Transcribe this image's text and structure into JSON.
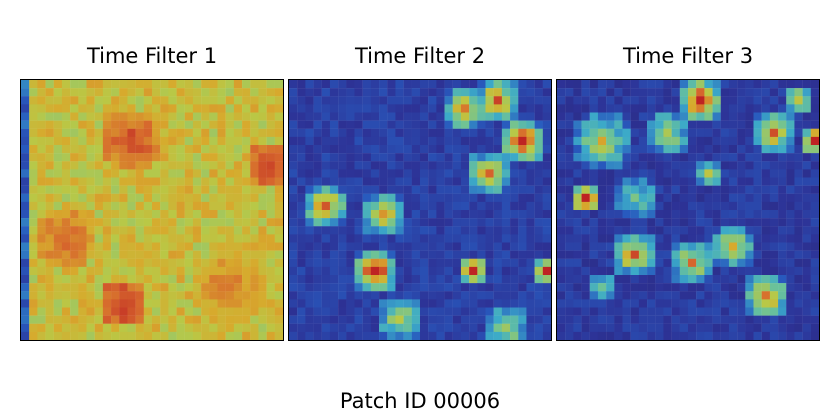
{
  "chart_data": [
    {
      "type": "heatmap",
      "title": "Time Filter 1",
      "grid_size": [
        32,
        32
      ],
      "value_range": [
        0,
        1
      ],
      "colormap": "jet",
      "overall_level": "high",
      "pattern_seed": 7,
      "hotspots": [
        {
          "col": 13,
          "row": 7,
          "radius": 4,
          "value": 0.95
        },
        {
          "col": 5,
          "row": 19,
          "radius": 4,
          "value": 0.92
        },
        {
          "col": 25,
          "row": 25,
          "radius": 5,
          "value": 0.9
        },
        {
          "col": 30,
          "row": 10,
          "radius": 3,
          "value": 0.95
        },
        {
          "col": 12,
          "row": 27,
          "radius": 3,
          "value": 0.97
        }
      ],
      "base_level": 0.74,
      "left_edge_low": true
    },
    {
      "type": "heatmap",
      "title": "Time Filter 2",
      "grid_size": [
        32,
        32
      ],
      "value_range": [
        0,
        1
      ],
      "colormap": "jet",
      "overall_level": "low",
      "pattern_seed": 19,
      "hotspots": [
        {
          "col": 21,
          "row": 3,
          "radius": 3,
          "value": 0.7
        },
        {
          "col": 25,
          "row": 2,
          "radius": 3,
          "value": 0.75
        },
        {
          "col": 28,
          "row": 7,
          "radius": 3,
          "value": 0.9
        },
        {
          "col": 24,
          "row": 11,
          "radius": 3,
          "value": 0.7
        },
        {
          "col": 4,
          "row": 15,
          "radius": 3,
          "value": 0.75
        },
        {
          "col": 11,
          "row": 16,
          "radius": 3,
          "value": 0.7
        },
        {
          "col": 10,
          "row": 23,
          "radius": 3,
          "value": 0.9
        },
        {
          "col": 22,
          "row": 23,
          "radius": 2,
          "value": 0.85
        },
        {
          "col": 31,
          "row": 23,
          "radius": 2,
          "value": 0.85
        },
        {
          "col": 13,
          "row": 29,
          "radius": 3,
          "value": 0.55
        },
        {
          "col": 26,
          "row": 30,
          "radius": 3,
          "value": 0.55
        }
      ],
      "base_level": 0.14
    },
    {
      "type": "heatmap",
      "title": "Time Filter 3",
      "grid_size": [
        32,
        32
      ],
      "value_range": [
        0,
        1
      ],
      "colormap": "jet",
      "overall_level": "low",
      "pattern_seed": 31,
      "hotspots": [
        {
          "col": 17,
          "row": 2,
          "radius": 3,
          "value": 0.85
        },
        {
          "col": 29,
          "row": 2,
          "radius": 2,
          "value": 0.55
        },
        {
          "col": 5,
          "row": 7,
          "radius": 4,
          "value": 0.55
        },
        {
          "col": 13,
          "row": 6,
          "radius": 3,
          "value": 0.55
        },
        {
          "col": 26,
          "row": 6,
          "radius": 3,
          "value": 0.65
        },
        {
          "col": 31,
          "row": 7,
          "radius": 2,
          "value": 0.85
        },
        {
          "col": 3,
          "row": 14,
          "radius": 2,
          "value": 0.95
        },
        {
          "col": 18,
          "row": 11,
          "radius": 2,
          "value": 0.55
        },
        {
          "col": 9,
          "row": 14,
          "radius": 3,
          "value": 0.45
        },
        {
          "col": 9,
          "row": 21,
          "radius": 3,
          "value": 0.7
        },
        {
          "col": 16,
          "row": 22,
          "radius": 3,
          "value": 0.65
        },
        {
          "col": 21,
          "row": 20,
          "radius": 3,
          "value": 0.6
        },
        {
          "col": 25,
          "row": 26,
          "radius": 3,
          "value": 0.75
        },
        {
          "col": 5,
          "row": 25,
          "radius": 2,
          "value": 0.4
        }
      ],
      "base_level": 0.12
    }
  ],
  "caption": "Patch ID 00006"
}
